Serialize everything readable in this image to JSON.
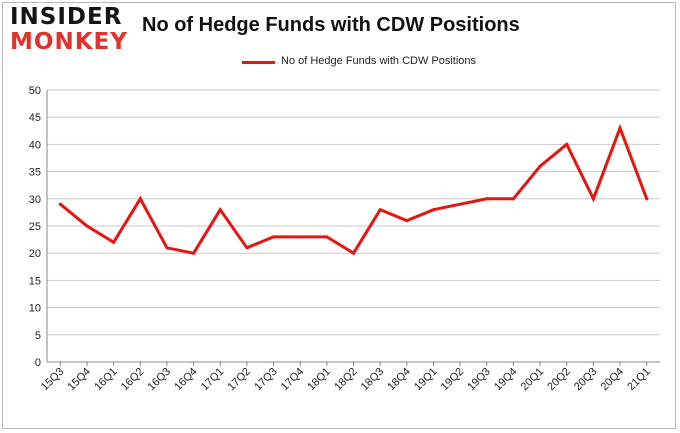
{
  "brand": {
    "logo_top": "INSIDER",
    "logo_bottom": "MONKEY",
    "accent_color": "#e2322b"
  },
  "chart_data": {
    "type": "line",
    "title": "No of Hedge Funds with CDW Positions",
    "xlabel": "",
    "ylabel": "",
    "categories": [
      "15Q3",
      "15Q4",
      "16Q1",
      "16Q2",
      "16Q3",
      "16Q4",
      "17Q1",
      "17Q2",
      "17Q3",
      "17Q4",
      "18Q1",
      "18Q2",
      "18Q3",
      "18Q4",
      "19Q1",
      "19Q2",
      "19Q3",
      "19Q4",
      "20Q1",
      "20Q2",
      "20Q3",
      "20Q4",
      "21Q1"
    ],
    "series": [
      {
        "name": "No of Hedge Funds with CDW Positions",
        "color": "#e8140f",
        "values": [
          29,
          25,
          22,
          30,
          21,
          20,
          28,
          21,
          23,
          23,
          23,
          20,
          28,
          26,
          28,
          29,
          30,
          30,
          36,
          40,
          30,
          43,
          30
        ]
      }
    ],
    "ylim": [
      0,
      50
    ],
    "yticks": [
      0,
      5,
      10,
      15,
      20,
      25,
      30,
      35,
      40,
      45,
      50
    ],
    "grid": true,
    "legend": "top-center"
  }
}
